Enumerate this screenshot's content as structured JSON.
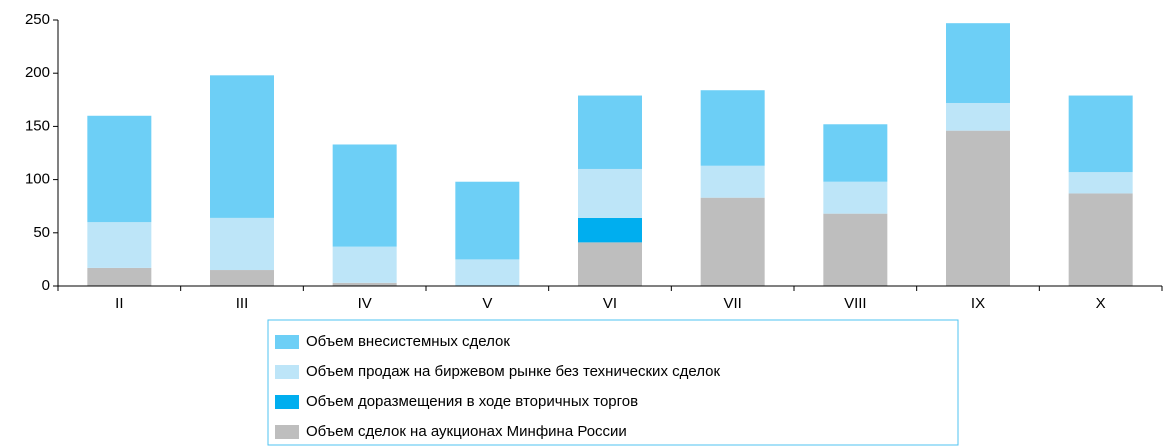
{
  "chart_data": {
    "type": "bar",
    "stacked": true,
    "categories": [
      "II",
      "III",
      "IV",
      "V",
      "VI",
      "VII",
      "VIII",
      "IX",
      "X"
    ],
    "series": [
      {
        "name": "Объем внесистемных сделок",
        "color": "#6dcff6",
        "values": [
          100,
          134,
          96,
          73,
          69,
          71,
          54,
          75,
          72
        ]
      },
      {
        "name": "Объем продаж на биржевом рынке без технических сделок",
        "color": "#bde5f8",
        "values": [
          43,
          49,
          34,
          25,
          46,
          30,
          30,
          26,
          20
        ]
      },
      {
        "name": "Объем доразмещения в ходе вторичных торгов",
        "color": "#00aeef",
        "values": [
          0,
          0,
          0,
          0,
          23,
          0,
          0,
          0,
          0
        ]
      },
      {
        "name": "Объем сделок на аукционах Минфина России",
        "color": "#bebebe",
        "values": [
          17,
          15,
          3,
          0,
          41,
          83,
          68,
          146,
          87
        ]
      }
    ],
    "ylim": [
      0,
      250
    ],
    "yticks": [
      0,
      50,
      100,
      150,
      200,
      250
    ],
    "grid": false
  }
}
